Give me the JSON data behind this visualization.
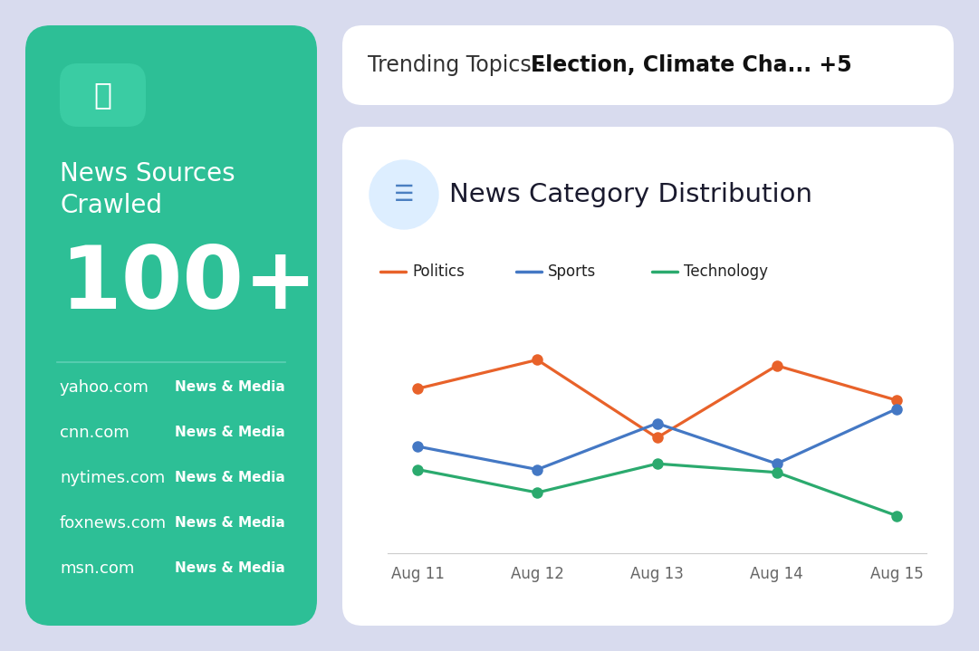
{
  "bg_color": "#d8dbee",
  "left_panel": {
    "bg_color": "#2dbf96",
    "icon_bg_color": "#3acca3",
    "title_line1": "News Sources",
    "title_line2": "Crawled",
    "count": "100+",
    "sources": [
      [
        "yahoo.com",
        "News & Media"
      ],
      [
        "cnn.com",
        "News & Media"
      ],
      [
        "nytimes.com",
        "News & Media"
      ],
      [
        "foxnews.com",
        "News & Media"
      ],
      [
        "msn.com",
        "News & Media"
      ]
    ],
    "text_color": "#ffffff",
    "divider_color": "#5ecfb5"
  },
  "trending_panel": {
    "bg_color": "#ffffff",
    "label_normal": "Trending Topics -  ",
    "label_bold": "Election, Climate Cha... +5",
    "text_color_normal": "#333333",
    "text_color_bold": "#111111"
  },
  "chart_panel": {
    "bg_color": "#ffffff",
    "chart_title": "News Category Distribution",
    "icon_bg": "#ddeeff",
    "icon_color": "#4a7fc1",
    "x_labels": [
      "Aug 11",
      "Aug 12",
      "Aug 13",
      "Aug 14",
      "Aug 15"
    ],
    "series": {
      "Politics": {
        "color": "#e8622a",
        "values": [
          72,
          82,
          55,
          80,
          68
        ]
      },
      "Sports": {
        "color": "#4478c4",
        "values": [
          52,
          44,
          60,
          46,
          65
        ]
      },
      "Technology": {
        "color": "#2baa6e",
        "values": [
          44,
          36,
          46,
          43,
          28
        ]
      }
    }
  }
}
